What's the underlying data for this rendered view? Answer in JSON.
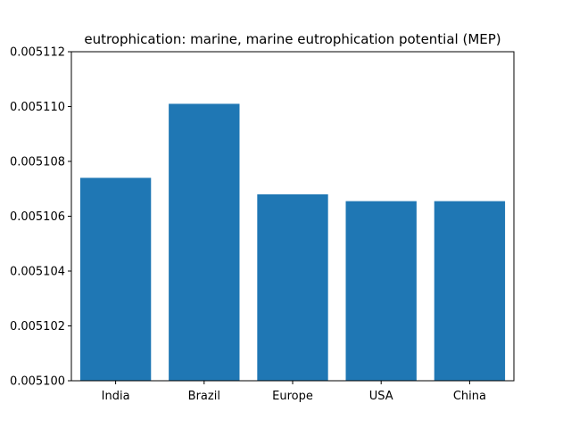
{
  "chart_data": {
    "type": "bar",
    "title": "eutrophication: marine, marine eutrophication potential (MEP)",
    "xlabel": "",
    "ylabel": "",
    "categories": [
      "India",
      "Brazil",
      "Europe",
      "USA",
      "China"
    ],
    "values": [
      0.0051074,
      0.0051101,
      0.0051068,
      0.00510655,
      0.00510655
    ],
    "ylim": [
      0.0051,
      0.005112
    ],
    "yticks": [
      "0.005100",
      "0.005102",
      "0.005104",
      "0.005106",
      "0.005108",
      "0.005110",
      "0.005112"
    ],
    "bar_color": "#1f77b4",
    "grid": false
  }
}
